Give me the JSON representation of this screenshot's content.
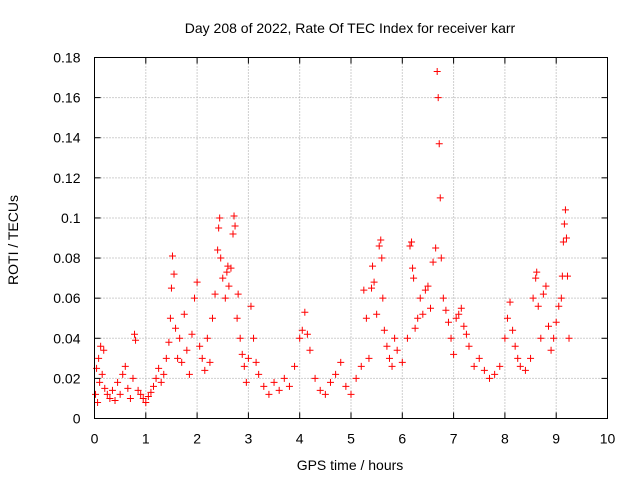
{
  "chart_data": {
    "type": "scatter",
    "title": "Day 208 of 2022, Rate Of TEC Index for receiver karr",
    "xlabel": "GPS time / hours",
    "ylabel": "ROTI / TECUs",
    "xlim": [
      0,
      10
    ],
    "ylim": [
      0,
      0.18
    ],
    "xticks": [
      0,
      1,
      2,
      3,
      4,
      5,
      6,
      7,
      8,
      9,
      10
    ],
    "yticks": [
      0,
      0.02,
      0.04,
      0.06,
      0.08,
      0.1,
      0.12,
      0.14,
      0.16,
      0.18
    ],
    "xtick_labels": [
      "0",
      "1",
      "2",
      "3",
      "4",
      "5",
      "6",
      "7",
      "8",
      "9",
      "10"
    ],
    "ytick_labels": [
      "0",
      "0.02",
      "0.04",
      "0.06",
      "0.08",
      "0.1",
      "0.12",
      "0.14",
      "0.16",
      "0.18"
    ],
    "grid": true,
    "marker": "+",
    "color": "#ff0000",
    "series": [
      {
        "name": "ROTI",
        "points": [
          [
            0.02,
            0.012
          ],
          [
            0.04,
            0.025
          ],
          [
            0.06,
            0.008
          ],
          [
            0.08,
            0.03
          ],
          [
            0.1,
            0.018
          ],
          [
            0.12,
            0.036
          ],
          [
            0.15,
            0.022
          ],
          [
            0.18,
            0.034
          ],
          [
            0.2,
            0.015
          ],
          [
            0.25,
            0.012
          ],
          [
            0.3,
            0.01
          ],
          [
            0.35,
            0.014
          ],
          [
            0.4,
            0.009
          ],
          [
            0.45,
            0.018
          ],
          [
            0.5,
            0.012
          ],
          [
            0.55,
            0.022
          ],
          [
            0.6,
            0.026
          ],
          [
            0.65,
            0.015
          ],
          [
            0.7,
            0.01
          ],
          [
            0.75,
            0.02
          ],
          [
            0.78,
            0.042
          ],
          [
            0.8,
            0.039
          ],
          [
            0.85,
            0.014
          ],
          [
            0.9,
            0.012
          ],
          [
            0.95,
            0.01
          ],
          [
            1.0,
            0.008
          ],
          [
            1.05,
            0.011
          ],
          [
            1.1,
            0.013
          ],
          [
            1.15,
            0.016
          ],
          [
            1.2,
            0.02
          ],
          [
            1.25,
            0.025
          ],
          [
            1.3,
            0.018
          ],
          [
            1.35,
            0.022
          ],
          [
            1.4,
            0.03
          ],
          [
            1.45,
            0.038
          ],
          [
            1.48,
            0.05
          ],
          [
            1.5,
            0.065
          ],
          [
            1.52,
            0.081
          ],
          [
            1.55,
            0.072
          ],
          [
            1.58,
            0.045
          ],
          [
            1.62,
            0.03
          ],
          [
            1.66,
            0.04
          ],
          [
            1.7,
            0.028
          ],
          [
            1.75,
            0.052
          ],
          [
            1.8,
            0.034
          ],
          [
            1.85,
            0.022
          ],
          [
            1.9,
            0.042
          ],
          [
            1.95,
            0.06
          ],
          [
            2.0,
            0.068
          ],
          [
            2.05,
            0.036
          ],
          [
            2.1,
            0.03
          ],
          [
            2.15,
            0.024
          ],
          [
            2.2,
            0.04
          ],
          [
            2.25,
            0.028
          ],
          [
            2.3,
            0.05
          ],
          [
            2.35,
            0.062
          ],
          [
            2.4,
            0.084
          ],
          [
            2.42,
            0.095
          ],
          [
            2.44,
            0.1
          ],
          [
            2.46,
            0.08
          ],
          [
            2.5,
            0.07
          ],
          [
            2.55,
            0.06
          ],
          [
            2.58,
            0.073
          ],
          [
            2.6,
            0.076
          ],
          [
            2.62,
            0.066
          ],
          [
            2.66,
            0.075
          ],
          [
            2.7,
            0.092
          ],
          [
            2.72,
            0.101
          ],
          [
            2.74,
            0.096
          ],
          [
            2.78,
            0.05
          ],
          [
            2.8,
            0.062
          ],
          [
            2.84,
            0.04
          ],
          [
            2.88,
            0.032
          ],
          [
            2.92,
            0.026
          ],
          [
            2.96,
            0.018
          ],
          [
            3.0,
            0.03
          ],
          [
            3.05,
            0.056
          ],
          [
            3.1,
            0.04
          ],
          [
            3.15,
            0.028
          ],
          [
            3.2,
            0.022
          ],
          [
            3.3,
            0.016
          ],
          [
            3.4,
            0.012
          ],
          [
            3.5,
            0.018
          ],
          [
            3.6,
            0.014
          ],
          [
            3.7,
            0.02
          ],
          [
            3.8,
            0.016
          ],
          [
            3.9,
            0.026
          ],
          [
            4.0,
            0.04
          ],
          [
            4.05,
            0.044
          ],
          [
            4.1,
            0.053
          ],
          [
            4.15,
            0.042
          ],
          [
            4.2,
            0.034
          ],
          [
            4.3,
            0.02
          ],
          [
            4.4,
            0.014
          ],
          [
            4.5,
            0.012
          ],
          [
            4.6,
            0.018
          ],
          [
            4.7,
            0.022
          ],
          [
            4.8,
            0.028
          ],
          [
            4.9,
            0.016
          ],
          [
            5.0,
            0.012
          ],
          [
            5.1,
            0.02
          ],
          [
            5.2,
            0.026
          ],
          [
            5.25,
            0.064
          ],
          [
            5.3,
            0.05
          ],
          [
            5.35,
            0.03
          ],
          [
            5.4,
            0.065
          ],
          [
            5.42,
            0.076
          ],
          [
            5.45,
            0.068
          ],
          [
            5.5,
            0.052
          ],
          [
            5.55,
            0.086
          ],
          [
            5.58,
            0.089
          ],
          [
            5.6,
            0.08
          ],
          [
            5.62,
            0.06
          ],
          [
            5.65,
            0.044
          ],
          [
            5.7,
            0.036
          ],
          [
            5.75,
            0.03
          ],
          [
            5.8,
            0.026
          ],
          [
            5.85,
            0.04
          ],
          [
            5.9,
            0.034
          ],
          [
            6.0,
            0.028
          ],
          [
            6.1,
            0.04
          ],
          [
            6.15,
            0.086
          ],
          [
            6.18,
            0.088
          ],
          [
            6.2,
            0.075
          ],
          [
            6.22,
            0.07
          ],
          [
            6.25,
            0.045
          ],
          [
            6.3,
            0.05
          ],
          [
            6.35,
            0.06
          ],
          [
            6.4,
            0.052
          ],
          [
            6.45,
            0.064
          ],
          [
            6.5,
            0.066
          ],
          [
            6.55,
            0.055
          ],
          [
            6.6,
            0.078
          ],
          [
            6.65,
            0.085
          ],
          [
            6.68,
            0.173
          ],
          [
            6.7,
            0.16
          ],
          [
            6.72,
            0.137
          ],
          [
            6.74,
            0.11
          ],
          [
            6.76,
            0.08
          ],
          [
            6.8,
            0.06
          ],
          [
            6.85,
            0.054
          ],
          [
            6.9,
            0.048
          ],
          [
            6.95,
            0.04
          ],
          [
            7.0,
            0.032
          ],
          [
            7.05,
            0.05
          ],
          [
            7.1,
            0.052
          ],
          [
            7.15,
            0.055
          ],
          [
            7.2,
            0.046
          ],
          [
            7.25,
            0.042
          ],
          [
            7.3,
            0.036
          ],
          [
            7.4,
            0.026
          ],
          [
            7.5,
            0.03
          ],
          [
            7.6,
            0.024
          ],
          [
            7.7,
            0.02
          ],
          [
            7.8,
            0.022
          ],
          [
            7.9,
            0.026
          ],
          [
            8.0,
            0.04
          ],
          [
            8.05,
            0.05
          ],
          [
            8.1,
            0.058
          ],
          [
            8.15,
            0.044
          ],
          [
            8.2,
            0.036
          ],
          [
            8.25,
            0.03
          ],
          [
            8.3,
            0.026
          ],
          [
            8.4,
            0.024
          ],
          [
            8.5,
            0.03
          ],
          [
            8.55,
            0.06
          ],
          [
            8.6,
            0.07
          ],
          [
            8.62,
            0.073
          ],
          [
            8.65,
            0.056
          ],
          [
            8.7,
            0.04
          ],
          [
            8.75,
            0.062
          ],
          [
            8.8,
            0.066
          ],
          [
            8.85,
            0.046
          ],
          [
            8.9,
            0.034
          ],
          [
            8.95,
            0.04
          ],
          [
            9.0,
            0.048
          ],
          [
            9.05,
            0.056
          ],
          [
            9.1,
            0.06
          ],
          [
            9.12,
            0.071
          ],
          [
            9.14,
            0.088
          ],
          [
            9.16,
            0.097
          ],
          [
            9.18,
            0.104
          ],
          [
            9.2,
            0.09
          ],
          [
            9.22,
            0.071
          ],
          [
            9.25,
            0.04
          ]
        ]
      }
    ]
  }
}
